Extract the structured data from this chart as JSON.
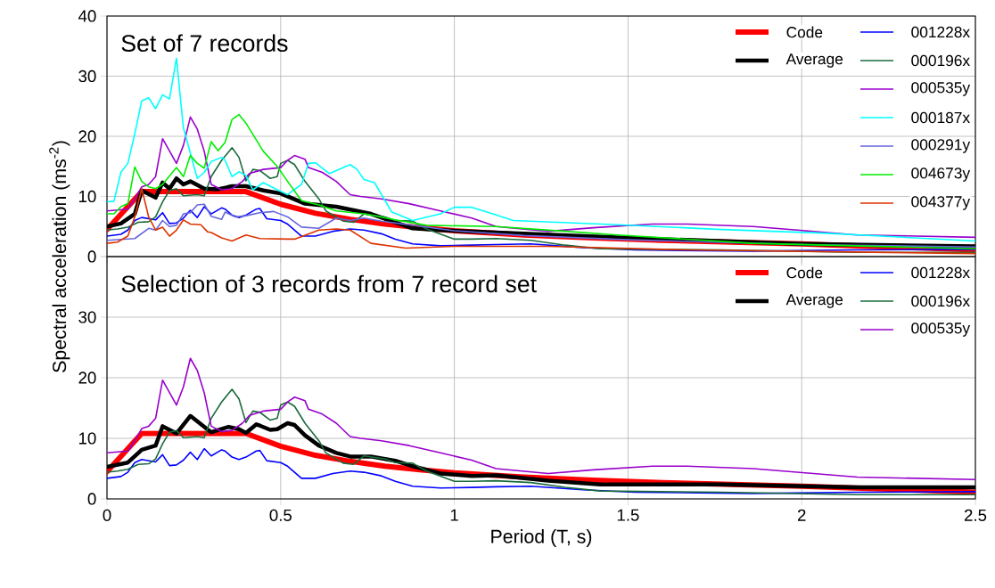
{
  "chart_data": [
    {
      "type": "line",
      "title": "Set of 7 records",
      "ylabel": "Spectral acceleration (ms$^{-2}$)",
      "xlim": [
        0,
        2.5
      ],
      "ylim": [
        0,
        40
      ],
      "xticks": [
        0,
        0.5,
        1,
        1.5,
        2,
        2.5
      ],
      "yticks": [
        0,
        10,
        20,
        30,
        40
      ],
      "tick_labels": "y",
      "grid": true,
      "legend": "top right",
      "series": [
        {
          "name": "Code",
          "color": "#ff0000",
          "x": [
            0,
            0.1,
            0.4,
            0.5,
            0.6,
            0.7,
            0.8,
            0.9,
            1.0,
            1.2,
            1.4,
            1.6,
            1.8,
            2.0,
            2.25,
            2.5
          ],
          "values": [
            4.5,
            10.8,
            10.8,
            8.7,
            7.2,
            6.2,
            5.4,
            4.8,
            4.3,
            3.6,
            3.1,
            2.7,
            2.4,
            2.1,
            1.6,
            1.1
          ]
        },
        {
          "name": "Average",
          "color": "#000000",
          "x": [
            0,
            0.04,
            0.08,
            0.1,
            0.14,
            0.16,
            0.18,
            0.2,
            0.22,
            0.24,
            0.28,
            0.32,
            0.36,
            0.4,
            0.45,
            0.5,
            0.57,
            0.66,
            0.71,
            0.76,
            0.83,
            0.88,
            0.96,
            1.2,
            1.5,
            2.0,
            2.5
          ],
          "values": [
            5.0,
            5.5,
            7.1,
            11.0,
            9.8,
            12.3,
            11.3,
            13.0,
            12.0,
            12.5,
            11.3,
            11.2,
            11.7,
            11.7,
            11.0,
            10.5,
            8.8,
            8.3,
            7.7,
            7.1,
            5.7,
            4.7,
            4.4,
            3.8,
            3.1,
            2.1,
            1.7
          ]
        },
        {
          "name": "001228x",
          "color": "#0000ff",
          "x": [
            0,
            0.04,
            0.06,
            0.08,
            0.1,
            0.14,
            0.16,
            0.18,
            0.2,
            0.22,
            0.24,
            0.26,
            0.28,
            0.3,
            0.33,
            0.34,
            0.36,
            0.38,
            0.4,
            0.43,
            0.44,
            0.46,
            0.5,
            0.52,
            0.56,
            0.6,
            0.65,
            0.7,
            0.74,
            0.79,
            0.83,
            0.88,
            0.96,
            1.05,
            1.12,
            1.22,
            1.37,
            1.52,
            1.86,
            2.16,
            2.5
          ],
          "values": [
            3.4,
            3.7,
            4.4,
            6.0,
            6.5,
            6.1,
            7.3,
            5.5,
            5.6,
            6.4,
            7.7,
            6.5,
            8.3,
            7.1,
            8.1,
            7.9,
            6.9,
            6.5,
            6.9,
            7.9,
            8.0,
            6.3,
            6.0,
            5.4,
            3.4,
            3.4,
            4.2,
            4.6,
            4.4,
            3.8,
            2.9,
            2.1,
            1.8,
            1.9,
            2.0,
            2.1,
            1.5,
            1.1,
            0.9,
            1.1,
            1.2
          ]
        },
        {
          "name": "000196x",
          "color": "#1a6b3c",
          "x": [
            0,
            0.03,
            0.06,
            0.09,
            0.12,
            0.14,
            0.16,
            0.18,
            0.2,
            0.22,
            0.26,
            0.28,
            0.3,
            0.33,
            0.36,
            0.38,
            0.4,
            0.42,
            0.44,
            0.47,
            0.49,
            0.5,
            0.52,
            0.54,
            0.57,
            0.61,
            0.63,
            0.68,
            0.71,
            0.74,
            0.8,
            0.83,
            0.88,
            0.92,
            1.0,
            1.05,
            1.12,
            1.22,
            1.32,
            1.42,
            1.77,
            2.16,
            2.5
          ],
          "values": [
            4.4,
            4.6,
            4.9,
            5.7,
            5.8,
            6.6,
            9.1,
            11.0,
            11.3,
            10.1,
            10.3,
            10.1,
            13.3,
            16.0,
            18.1,
            16.5,
            12.6,
            14.5,
            14.3,
            13.0,
            13.3,
            15.5,
            16.0,
            15.3,
            12.5,
            9.6,
            7.6,
            5.9,
            5.7,
            7.1,
            6.6,
            6.0,
            5.9,
            4.6,
            2.9,
            2.9,
            3.0,
            2.7,
            1.9,
            1.3,
            1.1,
            0.7,
            0.7
          ]
        },
        {
          "name": "000535y",
          "color": "#9900cc",
          "x": [
            0,
            0.06,
            0.08,
            0.1,
            0.12,
            0.14,
            0.16,
            0.2,
            0.22,
            0.24,
            0.26,
            0.28,
            0.3,
            0.33,
            0.36,
            0.39,
            0.41,
            0.45,
            0.5,
            0.52,
            0.54,
            0.57,
            0.58,
            0.62,
            0.66,
            0.7,
            0.73,
            0.79,
            0.87,
            0.96,
            1.05,
            1.12,
            1.27,
            1.4,
            1.57,
            1.67,
            1.86,
            2.16,
            2.5
          ],
          "values": [
            7.6,
            7.9,
            9.6,
            11.6,
            12.0,
            13.3,
            19.6,
            15.5,
            18.5,
            23.2,
            21.2,
            17.5,
            12.0,
            11.1,
            11.3,
            12.5,
            13.8,
            14.5,
            14.8,
            16.0,
            16.8,
            16.2,
            14.8,
            14.0,
            12.5,
            10.3,
            10.0,
            9.6,
            8.8,
            7.6,
            6.4,
            5.0,
            4.2,
            4.8,
            5.4,
            5.4,
            5.0,
            3.6,
            3.2
          ]
        },
        {
          "name": "000187x",
          "color": "#00ffff",
          "x": [
            0,
            0.02,
            0.04,
            0.06,
            0.08,
            0.1,
            0.12,
            0.14,
            0.16,
            0.18,
            0.2,
            0.22,
            0.26,
            0.28,
            0.3,
            0.33,
            0.34,
            0.36,
            0.38,
            0.4,
            0.42,
            0.45,
            0.49,
            0.52,
            0.56,
            0.58,
            0.6,
            0.64,
            0.66,
            0.7,
            0.72,
            0.74,
            0.77,
            0.82,
            0.88,
            0.96,
            1.0,
            1.05,
            1.1,
            1.17,
            1.47,
            1.77,
            2.06,
            2.5
          ],
          "values": [
            9.1,
            9.2,
            14.0,
            15.5,
            20.4,
            25.9,
            26.4,
            24.6,
            26.9,
            26.2,
            33.0,
            21.4,
            13.0,
            14.0,
            15.8,
            16.5,
            16.0,
            13.3,
            14.1,
            13.5,
            11.1,
            12.3,
            11.1,
            10.3,
            12.0,
            15.5,
            15.6,
            13.8,
            14.3,
            15.3,
            14.5,
            12.8,
            12.3,
            7.4,
            6.0,
            7.1,
            8.2,
            8.2,
            7.3,
            6.0,
            5.3,
            4.5,
            3.9,
            2.6
          ]
        },
        {
          "name": "000291y",
          "color": "#6666dd",
          "x": [
            0,
            0.08,
            0.12,
            0.14,
            0.16,
            0.18,
            0.2,
            0.22,
            0.24,
            0.26,
            0.28,
            0.3,
            0.33,
            0.34,
            0.37,
            0.4,
            0.44,
            0.48,
            0.52,
            0.56,
            0.61,
            0.66,
            0.7,
            0.74,
            0.79,
            1.0,
            1.2,
            1.5,
            2.0,
            2.5
          ],
          "values": [
            2.7,
            3.0,
            4.7,
            4.4,
            6.0,
            5.0,
            5.2,
            7.1,
            7.3,
            8.6,
            8.7,
            6.7,
            6.2,
            7.4,
            6.6,
            6.8,
            7.3,
            7.5,
            6.6,
            4.9,
            4.7,
            6.4,
            6.0,
            6.4,
            5.9,
            4.3,
            3.5,
            2.8,
            2.0,
            1.6
          ]
        },
        {
          "name": "004673y",
          "color": "#00ee00",
          "x": [
            0,
            0.02,
            0.04,
            0.06,
            0.08,
            0.1,
            0.12,
            0.14,
            0.16,
            0.2,
            0.22,
            0.24,
            0.26,
            0.28,
            0.3,
            0.32,
            0.34,
            0.36,
            0.38,
            0.4,
            0.45,
            0.49,
            0.52,
            0.56,
            0.61,
            0.66,
            0.74,
            0.83,
            0.92,
            1.12,
            1.32,
            1.47,
            1.86,
            2.5
          ],
          "values": [
            7.1,
            7.1,
            8.3,
            8.8,
            14.9,
            12.5,
            11.6,
            11.3,
            12.0,
            14.8,
            13.3,
            16.8,
            15.5,
            14.7,
            19.1,
            17.6,
            19.0,
            22.8,
            23.6,
            22.2,
            17.5,
            15.0,
            12.5,
            9.3,
            8.6,
            7.6,
            7.1,
            6.1,
            5.2,
            5.0,
            4.2,
            3.6,
            2.2,
            1.3
          ]
        },
        {
          "name": "004377y",
          "color": "#dd3300",
          "x": [
            0,
            0.03,
            0.06,
            0.08,
            0.1,
            0.12,
            0.14,
            0.16,
            0.18,
            0.2,
            0.22,
            0.24,
            0.27,
            0.29,
            0.3,
            0.33,
            0.36,
            0.4,
            0.44,
            0.52,
            0.54,
            0.61,
            0.66,
            0.7,
            0.76,
            0.86,
            1.0,
            1.12,
            1.27,
            1.67,
            2.5
          ],
          "values": [
            2.2,
            2.4,
            3.4,
            6.6,
            11.3,
            6.6,
            4.4,
            4.9,
            3.4,
            4.4,
            6.1,
            5.4,
            5.3,
            4.1,
            4.0,
            3.1,
            2.6,
            3.6,
            3.0,
            2.9,
            2.9,
            4.4,
            4.6,
            4.4,
            2.2,
            1.4,
            1.7,
            1.7,
            1.7,
            1.1,
            0.5
          ]
        }
      ]
    },
    {
      "type": "line",
      "title": "Selection of 3 records from 7 record set",
      "xlabel": "Period (T, s)",
      "xlim": [
        0,
        2.5
      ],
      "ylim": [
        0,
        40
      ],
      "xticks": [
        0,
        0.5,
        1,
        1.5,
        2,
        2.5
      ],
      "yticks": [
        0,
        10,
        20,
        30,
        {
          "value": 40,
          "label": null
        }
      ],
      "grid": true,
      "legend": "top right",
      "series": [
        {
          "name": "Code",
          "color": "#ff0000",
          "x": [
            0,
            0.1,
            0.4,
            0.5,
            0.6,
            0.7,
            0.8,
            0.9,
            1.0,
            1.2,
            1.4,
            1.6,
            1.8,
            2.0,
            2.25,
            2.5
          ],
          "values": [
            4.5,
            10.8,
            10.8,
            8.7,
            7.2,
            6.2,
            5.4,
            4.8,
            4.3,
            3.6,
            3.1,
            2.7,
            2.4,
            2.1,
            1.6,
            1.1
          ]
        },
        {
          "name": "Average",
          "color": "#000000",
          "x": [
            0,
            0.06,
            0.1,
            0.14,
            0.16,
            0.2,
            0.24,
            0.3,
            0.35,
            0.38,
            0.4,
            0.43,
            0.44,
            0.47,
            0.49,
            0.52,
            0.54,
            0.57,
            0.61,
            0.66,
            0.7,
            0.76,
            0.83,
            0.88,
            0.96,
            1.05,
            1.12,
            1.27,
            1.42,
            1.77,
            2.16,
            2.5
          ],
          "values": [
            5.3,
            6.0,
            8.1,
            8.8,
            12.0,
            10.8,
            13.7,
            11.0,
            11.9,
            11.5,
            10.9,
            12.3,
            12.1,
            11.4,
            11.5,
            12.5,
            12.2,
            10.5,
            8.8,
            7.6,
            7.0,
            7.0,
            6.3,
            5.4,
            4.2,
            3.8,
            3.9,
            3.0,
            2.4,
            2.4,
            1.9,
            1.9
          ]
        },
        {
          "name": "001228x",
          "color": "#0000ff",
          "x": [
            0,
            0.04,
            0.06,
            0.08,
            0.1,
            0.14,
            0.16,
            0.18,
            0.2,
            0.22,
            0.24,
            0.26,
            0.28,
            0.3,
            0.33,
            0.34,
            0.36,
            0.38,
            0.4,
            0.43,
            0.44,
            0.46,
            0.5,
            0.52,
            0.56,
            0.6,
            0.65,
            0.7,
            0.74,
            0.79,
            0.83,
            0.88,
            0.96,
            1.05,
            1.12,
            1.22,
            1.37,
            1.52,
            1.86,
            2.16,
            2.5
          ],
          "values": [
            3.4,
            3.7,
            4.4,
            6.0,
            6.5,
            6.1,
            7.3,
            5.5,
            5.6,
            6.4,
            7.7,
            6.5,
            8.3,
            7.1,
            8.1,
            7.9,
            6.9,
            6.5,
            6.9,
            7.9,
            8.0,
            6.3,
            6.0,
            5.4,
            3.4,
            3.4,
            4.2,
            4.6,
            4.4,
            3.8,
            2.9,
            2.1,
            1.8,
            1.9,
            2.0,
            2.1,
            1.5,
            1.1,
            0.9,
            1.1,
            1.2
          ]
        },
        {
          "name": "000196x",
          "color": "#1a6b3c",
          "x": [
            0,
            0.03,
            0.06,
            0.09,
            0.12,
            0.14,
            0.16,
            0.18,
            0.2,
            0.22,
            0.26,
            0.28,
            0.3,
            0.33,
            0.36,
            0.38,
            0.4,
            0.42,
            0.44,
            0.47,
            0.49,
            0.5,
            0.52,
            0.54,
            0.57,
            0.61,
            0.63,
            0.68,
            0.71,
            0.74,
            0.8,
            0.83,
            0.88,
            0.92,
            1.0,
            1.05,
            1.12,
            1.22,
            1.32,
            1.42,
            1.77,
            2.16,
            2.5
          ],
          "values": [
            4.4,
            4.6,
            4.9,
            5.7,
            5.8,
            6.6,
            9.1,
            11.0,
            11.3,
            10.1,
            10.3,
            10.1,
            13.3,
            16.0,
            18.1,
            16.5,
            12.6,
            14.5,
            14.3,
            13.0,
            13.3,
            15.5,
            16.0,
            15.3,
            12.5,
            9.6,
            7.6,
            5.9,
            5.7,
            7.1,
            6.6,
            6.0,
            5.9,
            4.6,
            2.9,
            2.9,
            3.0,
            2.7,
            1.9,
            1.3,
            1.1,
            0.7,
            0.7
          ]
        },
        {
          "name": "000535y",
          "color": "#9900cc",
          "x": [
            0,
            0.06,
            0.08,
            0.1,
            0.12,
            0.14,
            0.16,
            0.2,
            0.22,
            0.24,
            0.26,
            0.28,
            0.3,
            0.33,
            0.36,
            0.39,
            0.41,
            0.45,
            0.5,
            0.52,
            0.54,
            0.57,
            0.58,
            0.62,
            0.66,
            0.7,
            0.73,
            0.79,
            0.87,
            0.96,
            1.05,
            1.12,
            1.27,
            1.4,
            1.57,
            1.67,
            1.86,
            2.16,
            2.5
          ],
          "values": [
            7.6,
            7.9,
            9.6,
            11.6,
            12.0,
            13.3,
            19.6,
            15.5,
            18.5,
            23.2,
            21.2,
            17.5,
            12.0,
            11.1,
            11.3,
            12.5,
            13.8,
            14.5,
            14.8,
            16.0,
            16.8,
            16.2,
            14.8,
            14.0,
            12.5,
            10.3,
            10.0,
            9.6,
            8.8,
            7.6,
            6.4,
            5.0,
            4.2,
            4.8,
            5.4,
            5.4,
            5.0,
            3.6,
            3.2
          ]
        }
      ]
    }
  ]
}
